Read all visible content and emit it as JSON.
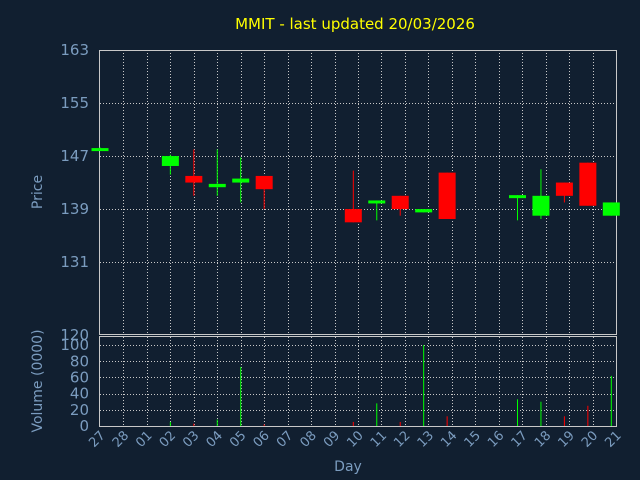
{
  "chart_data": {
    "type": "candlestick",
    "title": "MMIT - last updated 20/03/2026",
    "xlabel": "Day",
    "ylabel": "Price",
    "volume_label": "Volume (0000)",
    "categories": [
      "27",
      "28",
      "01",
      "02",
      "03",
      "04",
      "05",
      "06",
      "07",
      "08",
      "09",
      "10",
      "11",
      "12",
      "13",
      "14",
      "15",
      "16",
      "17",
      "18",
      "19",
      "20",
      "21"
    ],
    "price_ticks": [
      163,
      155,
      147,
      139,
      131,
      120
    ],
    "price_ylim": [
      120,
      163
    ],
    "volume_ticks": [
      0,
      20,
      40,
      60,
      80,
      100
    ],
    "volume_ylim": [
      0,
      110
    ],
    "grid": true,
    "colors": {
      "up": "#00ff00",
      "down": "#ff0000",
      "flat": "#00ff00"
    },
    "candles": [
      {
        "x": 0.0,
        "open": 148.2,
        "close": 148.2,
        "high": 148.3,
        "low": 148.1
      },
      {
        "x": 3.0,
        "open": 145.5,
        "close": 147.0,
        "high": 147.2,
        "low": 144.2
      },
      {
        "x": 4.0,
        "open": 144.0,
        "close": 143.0,
        "high": 148.0,
        "low": 141.0
      },
      {
        "x": 5.0,
        "open": 142.3,
        "close": 142.8,
        "high": 148.0,
        "low": 141.0
      },
      {
        "x": 6.0,
        "open": 143.0,
        "close": 143.6,
        "high": 146.8,
        "low": 140.0
      },
      {
        "x": 7.0,
        "open": 144.0,
        "close": 142.0,
        "high": 144.0,
        "low": 139.0
      },
      {
        "x": 10.8,
        "open": 139.0,
        "close": 137.0,
        "high": 144.8,
        "low": 137.0
      },
      {
        "x": 11.8,
        "open": 140.0,
        "close": 140.3,
        "high": 140.3,
        "low": 137.3
      },
      {
        "x": 12.8,
        "open": 141.0,
        "close": 139.0,
        "high": 141.0,
        "low": 138.0
      },
      {
        "x": 13.8,
        "open": 138.5,
        "close": 139.0,
        "high": 139.0,
        "low": 138.5
      },
      {
        "x": 14.8,
        "open": 144.5,
        "close": 137.5,
        "high": 144.5,
        "low": 137.5
      },
      {
        "x": 17.8,
        "open": 140.8,
        "close": 141.1,
        "high": 141.1,
        "low": 137.3
      },
      {
        "x": 18.8,
        "open": 138.0,
        "close": 141.0,
        "high": 145.0,
        "low": 137.5
      },
      {
        "x": 19.8,
        "open": 143.0,
        "close": 141.0,
        "high": 143.0,
        "low": 140.0
      },
      {
        "x": 20.8,
        "open": 146.0,
        "close": 139.5,
        "high": 146.0,
        "low": 139.5
      },
      {
        "x": 21.8,
        "open": 138.0,
        "close": 140.0,
        "high": 140.0,
        "low": 138.0
      }
    ],
    "volume": [
      {
        "x": 3.0,
        "value": 5,
        "dir": "up"
      },
      {
        "x": 4.0,
        "value": 3,
        "dir": "down"
      },
      {
        "x": 5.0,
        "value": 8,
        "dir": "up"
      },
      {
        "x": 6.0,
        "value": 73,
        "dir": "up"
      },
      {
        "x": 7.0,
        "value": 2,
        "dir": "down"
      },
      {
        "x": 10.8,
        "value": 5,
        "dir": "down"
      },
      {
        "x": 11.8,
        "value": 28,
        "dir": "up"
      },
      {
        "x": 12.8,
        "value": 5,
        "dir": "down"
      },
      {
        "x": 13.8,
        "value": 100,
        "dir": "up"
      },
      {
        "x": 14.8,
        "value": 12,
        "dir": "down"
      },
      {
        "x": 17.8,
        "value": 33,
        "dir": "up"
      },
      {
        "x": 18.8,
        "value": 30,
        "dir": "up"
      },
      {
        "x": 19.8,
        "value": 12,
        "dir": "down"
      },
      {
        "x": 20.8,
        "value": 25,
        "dir": "down"
      },
      {
        "x": 21.8,
        "value": 62,
        "dir": "up"
      }
    ]
  }
}
